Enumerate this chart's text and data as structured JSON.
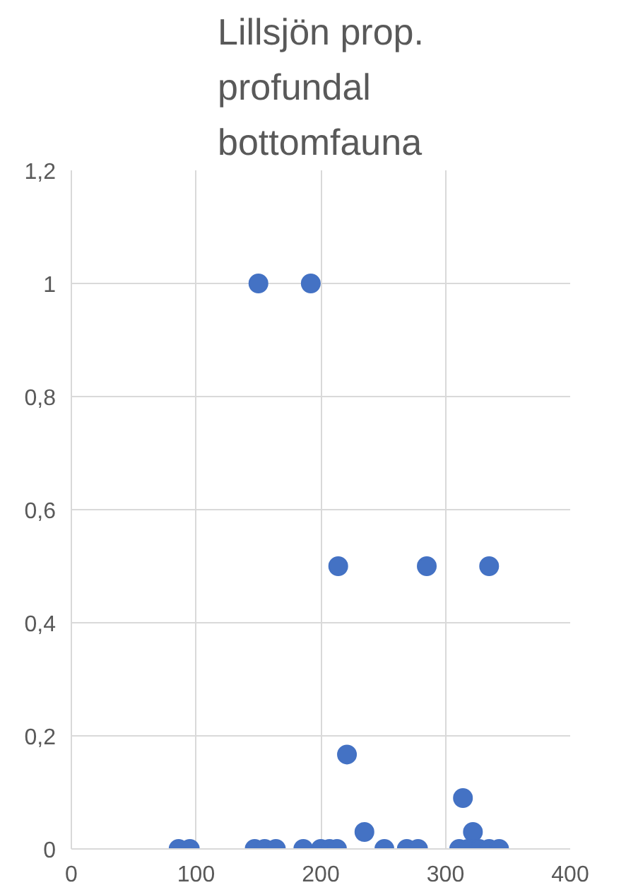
{
  "chart_data": {
    "type": "scatter",
    "title": "Lillsjön prop. profundal bottomfauna",
    "x": [
      150,
      192,
      214,
      285,
      335,
      221,
      314,
      235,
      322,
      272,
      86,
      95,
      147,
      155,
      164,
      186,
      200,
      207,
      213,
      251,
      269,
      278,
      311,
      318,
      327,
      335,
      343
    ],
    "values": [
      1,
      1,
      0.5,
      0.5,
      0.5,
      0.167,
      0.09,
      0.03,
      0.03,
      null,
      0,
      0,
      0,
      0,
      0,
      0,
      0,
      0,
      0,
      0,
      0,
      0,
      0,
      0,
      0,
      0,
      0
    ],
    "color": "#4472c4",
    "marker": "circle",
    "xlim": [
      0,
      400
    ],
    "xticks": [
      0,
      100,
      200,
      300,
      400
    ],
    "ylim": [
      0,
      1.2
    ],
    "yticks": [
      {
        "value": 0,
        "label": "0"
      },
      {
        "value": 0.2,
        "label": "0,2"
      },
      {
        "value": 0.4,
        "label": "0,4"
      },
      {
        "value": 0.6,
        "label": "0,6"
      },
      {
        "value": 0.8,
        "label": "0,8"
      },
      {
        "value": 1,
        "label": "1"
      },
      {
        "value": 1.2,
        "label": "1,2"
      }
    ],
    "grid": true
  }
}
